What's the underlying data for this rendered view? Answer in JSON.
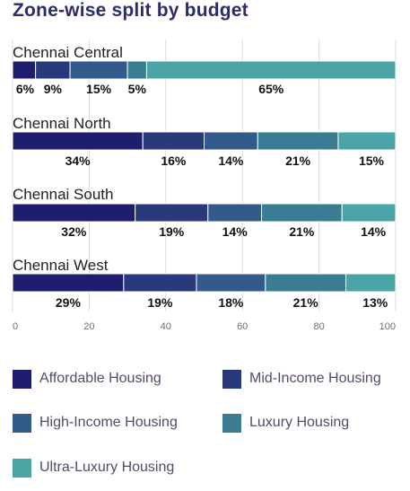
{
  "chart_data": {
    "type": "bar",
    "orientation": "horizontal",
    "stacked": true,
    "title": "Zone-wise split by budget",
    "xlim": [
      0,
      100
    ],
    "xticks": [
      0,
      20,
      40,
      60,
      80,
      100
    ],
    "grid": true,
    "legend_position": "bottom",
    "categories": [
      "Chennai Central",
      "Chennai North",
      "Chennai South",
      "Chennai West"
    ],
    "series": [
      {
        "name": "Affordable Housing",
        "color": "#1f1d6e",
        "values": [
          6,
          34,
          32,
          29
        ]
      },
      {
        "name": "Mid-Income Housing",
        "color": "#293a7c",
        "values": [
          9,
          16,
          19,
          19
        ]
      },
      {
        "name": "High-Income Housing",
        "color": "#325a8b",
        "values": [
          15,
          14,
          14,
          18
        ]
      },
      {
        "name": "Luxury Housing",
        "color": "#3a7d93",
        "values": [
          5,
          21,
          21,
          21
        ]
      },
      {
        "name": "Ultra-Luxury Housing",
        "color": "#4aa3a5",
        "values": [
          65,
          15,
          14,
          13
        ]
      }
    ],
    "data_labels": [
      [
        "6%",
        "9%",
        "15%",
        "5%",
        "65%"
      ],
      [
        "34%",
        "16%",
        "14%",
        "21%",
        "15%"
      ],
      [
        "32%",
        "19%",
        "14%",
        "21%",
        "14%"
      ],
      [
        "29%",
        "19%",
        "18%",
        "21%",
        "13%"
      ]
    ]
  }
}
